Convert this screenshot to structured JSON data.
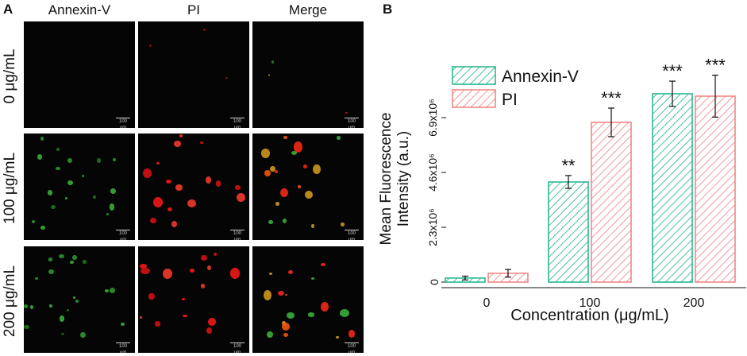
{
  "panel_a": {
    "letter": "A",
    "columns": [
      "Annexin-V",
      "PI",
      "Merge"
    ],
    "rows": [
      "0 μg/mL",
      "100 μg/mL",
      "200 μg/mL"
    ],
    "scale_bar_label": "100 μm"
  },
  "panel_b": {
    "letter": "B"
  },
  "chart_data": {
    "type": "bar",
    "categories": [
      "0",
      "100",
      "200"
    ],
    "series": [
      {
        "name": "Annexin-V",
        "values": [
          170000,
          4200000,
          7900000
        ],
        "errors": [
          80000,
          270000,
          530000
        ],
        "significance": [
          "",
          "**",
          "***"
        ],
        "color": "#1db38a"
      },
      {
        "name": "PI",
        "values": [
          370000,
          6700000,
          7800000
        ],
        "errors": [
          160000,
          600000,
          880000
        ],
        "significance": [
          "",
          "***",
          "***"
        ],
        "color": "#f08080"
      }
    ],
    "xlabel": "Concentration (μg/mL)",
    "ylabel_line1": "Mean Fluorescence",
    "ylabel_line2": "Intensity (a.u.)",
    "yticks": [
      0,
      2300000,
      4600000,
      6900000
    ],
    "ytick_labels": [
      "0",
      "2.3x10⁶",
      "4.6x10⁶",
      "6.9x10⁶"
    ],
    "ylim": [
      0,
      9000000
    ],
    "legend_position": "top-left",
    "grid": false
  }
}
